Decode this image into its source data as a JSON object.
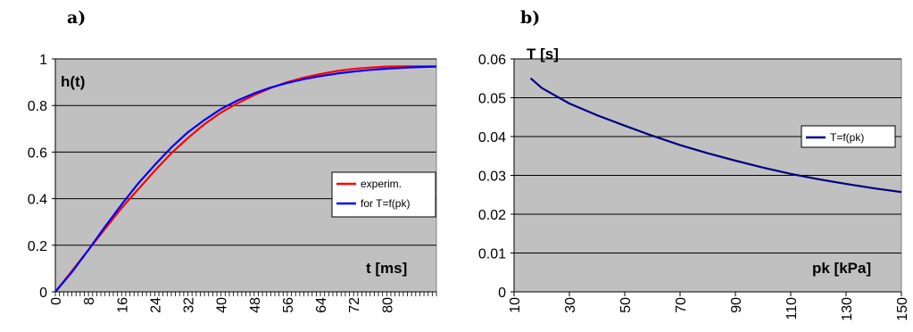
{
  "chart_data": [
    {
      "panel_label": "a)",
      "type": "line",
      "ylabel": "h(t)",
      "xlabel": "t [ms]",
      "xlim": [
        0,
        92
      ],
      "ylim": [
        0,
        1
      ],
      "yticks": [
        "0",
        "0.2",
        "0.4",
        "0.6",
        "0.8",
        "1"
      ],
      "xticks": [
        "0",
        "8",
        "16",
        "24",
        "32",
        "40",
        "48",
        "56",
        "64",
        "72",
        "80"
      ],
      "grid": "horizontal",
      "background": "#c0c0c0",
      "legend_position": "right",
      "series": [
        {
          "name": "experim.",
          "color": "#ff0000",
          "x": [
            0,
            4,
            8,
            12,
            16,
            20,
            24,
            28,
            32,
            36,
            40,
            44,
            48,
            52,
            56,
            60,
            64,
            68,
            72,
            76,
            80,
            84,
            88,
            92
          ],
          "y": [
            0,
            0.09,
            0.18,
            0.27,
            0.36,
            0.44,
            0.52,
            0.595,
            0.66,
            0.72,
            0.77,
            0.81,
            0.845,
            0.875,
            0.9,
            0.92,
            0.935,
            0.948,
            0.957,
            0.963,
            0.967,
            0.968,
            0.968,
            0.968
          ]
        },
        {
          "name": "for T=f(pk)",
          "color": "#0000ff",
          "x": [
            0,
            4,
            8,
            12,
            16,
            20,
            24,
            28,
            32,
            36,
            40,
            44,
            48,
            52,
            56,
            60,
            64,
            68,
            72,
            76,
            80,
            84,
            88,
            92
          ],
          "y": [
            0,
            0.085,
            0.18,
            0.28,
            0.375,
            0.465,
            0.545,
            0.62,
            0.685,
            0.738,
            0.785,
            0.822,
            0.852,
            0.877,
            0.897,
            0.913,
            0.926,
            0.937,
            0.946,
            0.953,
            0.958,
            0.962,
            0.965,
            0.967
          ]
        }
      ]
    },
    {
      "panel_label": "b)",
      "type": "line",
      "ylabel": "T [s]",
      "xlabel": "pk [kPa]",
      "xlim": [
        10,
        150
      ],
      "ylim": [
        0,
        0.06
      ],
      "yticks": [
        "0",
        "0.01",
        "0.02",
        "0.03",
        "0.04",
        "0.05",
        "0.06"
      ],
      "xticks": [
        "10",
        "30",
        "50",
        "70",
        "90",
        "110",
        "130",
        "150"
      ],
      "grid": "horizontal",
      "background": "#c0c0c0",
      "legend_position": "right",
      "series": [
        {
          "name": "T=f(pk)",
          "color": "#000080",
          "x": [
            16,
            20,
            25,
            30,
            40,
            50,
            60,
            70,
            80,
            90,
            100,
            110,
            120,
            130,
            140,
            150
          ],
          "y": [
            0.055,
            0.0525,
            0.0505,
            0.0485,
            0.0455,
            0.0428,
            0.0402,
            0.0378,
            0.0357,
            0.0338,
            0.032,
            0.0304,
            0.029,
            0.0278,
            0.0267,
            0.0257
          ]
        }
      ]
    }
  ]
}
